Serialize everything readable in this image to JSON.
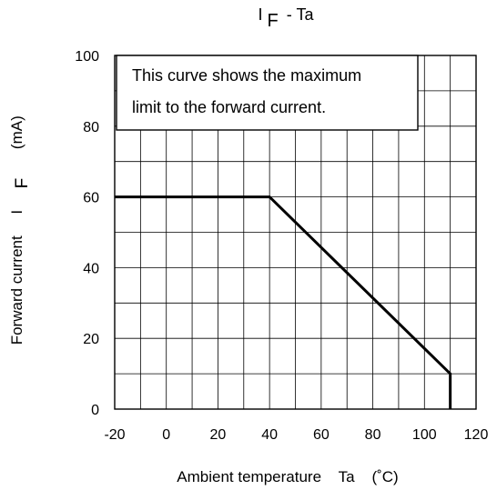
{
  "chart_data": {
    "type": "line",
    "title_main": "I",
    "title_sub": "F",
    "title_rest": "- Ta",
    "xlabel": "Ambient temperature    Ta    (˚C)",
    "ylabel_main": "Forward current     I",
    "ylabel_sub": "F",
    "ylabel_unit": "(mA)",
    "xlim": [
      -20,
      120
    ],
    "ylim": [
      0,
      100
    ],
    "xticks": [
      "-20",
      "0",
      "20",
      "40",
      "60",
      "80",
      "100",
      "120"
    ],
    "yticks": [
      "0",
      "20",
      "40",
      "60",
      "80",
      "100"
    ],
    "grid": true,
    "grid_x_step": 10,
    "grid_y_step": 10,
    "annotation_lines": [
      "This curve shows the maximum",
      "limit to the forward current."
    ],
    "series": [
      {
        "x": [
          -20,
          40,
          110,
          110
        ],
        "y": [
          60,
          60,
          10,
          0
        ]
      }
    ],
    "colors": {
      "line": "#000000",
      "grid": "#000000",
      "frame": "#000000",
      "background": "#ffffff"
    }
  }
}
